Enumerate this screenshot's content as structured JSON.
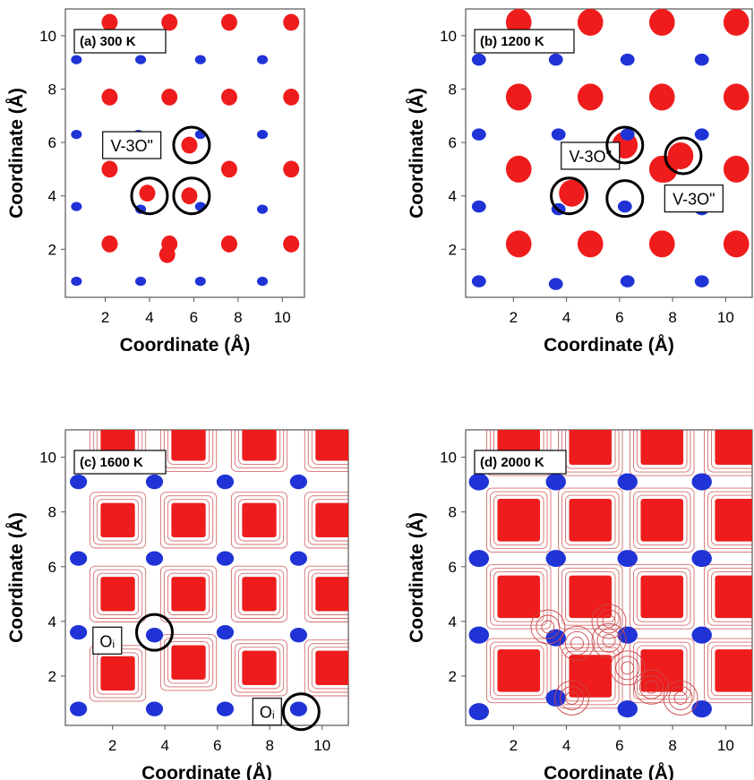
{
  "colors": {
    "oxygen": "#ee1c1c",
    "oxygen_contour": "#c94a4a",
    "cation": "#1f33d6",
    "frame": "#555555",
    "marker": "#000000"
  },
  "chart_data": [
    {
      "type": "scatter",
      "title": "(a)  300 K",
      "xlabel": "Coordinate (Å)",
      "ylabel": "Coordinate (Å)",
      "xlim": [
        0.2,
        11.0
      ],
      "ylim": [
        0.2,
        11.0
      ],
      "xticks": [
        "2",
        "4",
        "6",
        "8",
        "10"
      ],
      "yticks": [
        "2",
        "4",
        "6",
        "8",
        "10"
      ],
      "spread": 0.12,
      "series": [
        {
          "color_key": "oxygen",
          "x": [
            2.2,
            4.9,
            7.6,
            10.4,
            2.2,
            4.9,
            7.6,
            10.4,
            2.2,
            7.6,
            10.4,
            2.2,
            7.6,
            10.4,
            2.2,
            4.9,
            7.6,
            10.4,
            3.9,
            5.8,
            5.8,
            4.8
          ],
          "y": [
            10.5,
            10.5,
            10.5,
            10.5,
            7.7,
            7.7,
            7.7,
            7.7,
            5.0,
            5.0,
            5.0,
            2.2,
            2.2,
            2.2,
            2.2,
            2.2,
            2.2,
            2.2,
            4.1,
            4.0,
            5.9,
            1.8
          ]
        },
        {
          "color_key": "cation",
          "x": [
            0.7,
            3.6,
            6.3,
            9.1,
            0.7,
            3.5,
            6.3,
            9.1,
            0.7,
            3.6,
            6.3,
            9.1,
            0.7,
            3.6,
            6.3,
            9.1
          ],
          "y": [
            9.1,
            9.1,
            9.1,
            9.1,
            6.3,
            6.3,
            6.3,
            6.3,
            3.6,
            3.5,
            3.6,
            3.5,
            0.8,
            0.8,
            0.8,
            0.8
          ]
        }
      ],
      "markers": [
        {
          "x": 4.0,
          "y": 4.0
        },
        {
          "x": 5.9,
          "y": 5.9
        },
        {
          "x": 5.9,
          "y": 4.0
        }
      ],
      "labels": [
        {
          "text": "V-3O\"",
          "x": 3.2,
          "y": 5.9
        }
      ]
    },
    {
      "type": "scatter",
      "title": "(b)  1200 K",
      "xlabel": "Coordinate (Å)",
      "ylabel": "Coordinate (Å)",
      "xlim": [
        0.2,
        11.0
      ],
      "ylim": [
        0.2,
        11.0
      ],
      "xticks": [
        "2",
        "4",
        "6",
        "8",
        "10"
      ],
      "yticks": [
        "2",
        "4",
        "6",
        "8",
        "10"
      ],
      "spread": 0.28,
      "series": [
        {
          "color_key": "oxygen",
          "x": [
            2.2,
            4.9,
            7.6,
            10.4,
            2.2,
            4.9,
            7.6,
            10.4,
            2.2,
            7.6,
            10.4,
            2.2,
            4.9,
            7.6,
            10.4,
            4.2,
            6.2,
            8.3,
            7.7
          ],
          "y": [
            10.5,
            10.5,
            10.5,
            10.5,
            7.7,
            7.7,
            7.7,
            7.7,
            5.0,
            5.0,
            5.0,
            2.2,
            2.2,
            2.2,
            2.2,
            4.1,
            5.9,
            5.5,
            5.0
          ]
        },
        {
          "color_key": "cation",
          "x": [
            0.7,
            3.6,
            6.3,
            9.1,
            0.7,
            3.7,
            6.3,
            9.1,
            0.7,
            3.7,
            6.2,
            9.1,
            0.7,
            3.6,
            6.3,
            9.1
          ],
          "y": [
            9.1,
            9.1,
            9.1,
            9.1,
            6.3,
            6.3,
            6.3,
            6.3,
            3.6,
            3.5,
            3.6,
            3.5,
            0.8,
            0.7,
            0.8,
            0.8
          ]
        }
      ],
      "markers": [
        {
          "x": 4.1,
          "y": 4.0
        },
        {
          "x": 6.2,
          "y": 5.9
        },
        {
          "x": 8.4,
          "y": 5.5
        },
        {
          "x": 6.2,
          "y": 3.9
        }
      ],
      "labels": [
        {
          "text": "V-3O\"",
          "x": 4.9,
          "y": 5.5
        },
        {
          "text": "V-3O\"",
          "x": 8.8,
          "y": 3.9
        }
      ]
    },
    {
      "type": "scatter",
      "title": "(c) 1600 K",
      "xlabel": "Coordinate (Å)",
      "ylabel": "Coordinate (Å)",
      "xlim": [
        0.2,
        11.0
      ],
      "ylim": [
        0.2,
        11.0
      ],
      "xticks": [
        "2",
        "4",
        "6",
        "8",
        "10"
      ],
      "yticks": [
        "2",
        "4",
        "6",
        "8",
        "10"
      ],
      "spread": 0.45,
      "series": [
        {
          "color_key": "oxygen",
          "x": [
            2.2,
            4.9,
            7.6,
            10.4,
            2.2,
            4.9,
            7.6,
            10.4,
            2.2,
            4.9,
            7.6,
            10.4,
            2.2,
            4.9,
            7.6,
            10.4
          ],
          "y": [
            10.5,
            10.5,
            10.5,
            10.5,
            7.7,
            7.7,
            7.7,
            7.7,
            5.0,
            5.0,
            5.0,
            5.0,
            2.1,
            2.5,
            2.3,
            2.3
          ]
        },
        {
          "color_key": "cation",
          "x": [
            0.7,
            3.6,
            6.3,
            9.1,
            0.7,
            3.6,
            6.3,
            9.1,
            0.7,
            3.6,
            6.3,
            9.1,
            0.7,
            3.6,
            6.3,
            9.1
          ],
          "y": [
            9.1,
            9.1,
            9.1,
            9.1,
            6.3,
            6.3,
            6.3,
            6.3,
            3.6,
            3.5,
            3.6,
            3.5,
            0.8,
            0.8,
            0.8,
            0.8
          ]
        }
      ],
      "markers": [
        {
          "x": 3.6,
          "y": 3.6
        },
        {
          "x": 9.2,
          "y": 0.7
        }
      ],
      "labels": [
        {
          "text": "Oᵢ",
          "x": 1.8,
          "y": 3.3
        },
        {
          "text": "Oᵢ",
          "x": 7.9,
          "y": 0.7
        }
      ]
    },
    {
      "type": "scatter",
      "title": "(d) 2000 K",
      "xlabel": "Coordinate (Å)",
      "ylabel": "Coordinate (Å)",
      "xlim": [
        0.2,
        11.0
      ],
      "ylim": [
        0.2,
        11.0
      ],
      "xticks": [
        "2",
        "4",
        "6",
        "8",
        "10"
      ],
      "yticks": [
        "2",
        "4",
        "6",
        "8",
        "10"
      ],
      "spread": 0.6,
      "series": [
        {
          "color_key": "oxygen",
          "x": [
            2.2,
            4.9,
            7.6,
            10.4,
            2.2,
            4.9,
            7.6,
            10.4,
            2.2,
            4.9,
            7.6,
            10.4,
            2.2,
            4.9,
            7.6,
            10.4
          ],
          "y": [
            10.5,
            10.5,
            10.5,
            10.5,
            7.7,
            7.7,
            7.7,
            7.7,
            4.9,
            4.9,
            4.9,
            4.9,
            2.2,
            2.0,
            2.2,
            2.2
          ]
        },
        {
          "color_key": "cation",
          "x": [
            0.7,
            3.6,
            6.3,
            9.1,
            0.7,
            3.6,
            6.3,
            9.1,
            0.7,
            3.6,
            6.3,
            9.1,
            0.7,
            3.6,
            6.3,
            9.1
          ],
          "y": [
            9.1,
            9.1,
            9.1,
            9.1,
            6.3,
            6.3,
            6.3,
            6.3,
            3.5,
            3.4,
            3.5,
            3.5,
            0.7,
            1.2,
            0.8,
            0.8
          ]
        }
      ],
      "markers": [],
      "labels": []
    }
  ]
}
